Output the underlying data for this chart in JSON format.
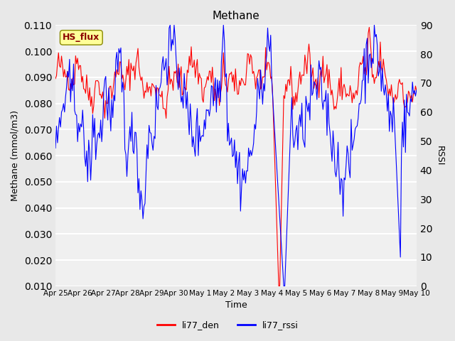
{
  "title": "Methane",
  "xlabel": "Time",
  "ylabel_left": "Methane (mmol/m3)",
  "ylabel_right": "RSSI",
  "ylim_left": [
    0.01,
    0.11
  ],
  "ylim_right": [
    0,
    90
  ],
  "yticks_left": [
    0.01,
    0.02,
    0.03,
    0.04,
    0.05,
    0.06,
    0.07,
    0.08,
    0.09,
    0.1,
    0.11
  ],
  "yticks_right": [
    0,
    10,
    20,
    30,
    40,
    50,
    60,
    70,
    80,
    90
  ],
  "bg_color": "#e8e8e8",
  "plot_bg_color": "#f0f0f0",
  "grid_color": "white",
  "line1_color": "red",
  "line2_color": "blue",
  "legend_label1": "li77_den",
  "legend_label2": "li77_rssi",
  "hs_flux_label": "HS_flux",
  "hs_flux_bg": "#ffff99",
  "hs_flux_text_color": "#8b0000",
  "x_tick_labels": [
    "Apr 25",
    "Apr 26",
    "Apr 27",
    "Apr 28",
    "Apr 29",
    "Apr 30",
    "May 1",
    "May 2",
    "May 3",
    "May 4",
    "May 5",
    "May 6",
    "May 7",
    "May 8",
    "May 9",
    "May 10"
  ],
  "n_points": 360
}
